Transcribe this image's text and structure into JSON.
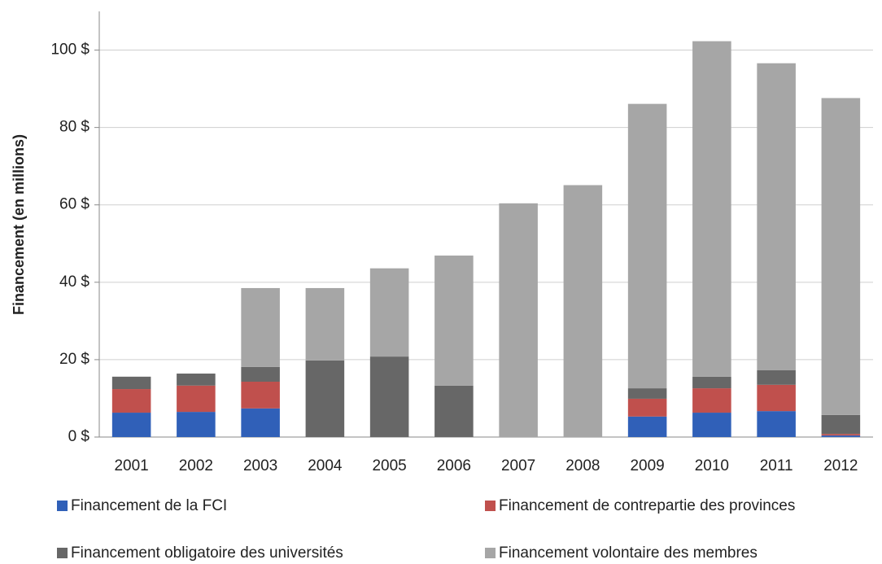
{
  "chart_data": {
    "type": "stacked_bar",
    "y_label": "Financement (en millions)",
    "categories": [
      "2001",
      "2002",
      "2003",
      "2004",
      "2005",
      "2006",
      "2007",
      "2008",
      "2009",
      "2010",
      "2011",
      "2012"
    ],
    "series": [
      {
        "name": "Financement de la FCI",
        "color": "#3060b8",
        "values": [
          6.3,
          6.5,
          7.4,
          0,
          0,
          0,
          0,
          0,
          5.3,
          6.3,
          6.7,
          0.4
        ]
      },
      {
        "name": "Financement de contrepartie des provinces",
        "color": "#c0504d",
        "values": [
          6.1,
          6.8,
          6.9,
          0,
          0,
          0,
          0,
          0,
          4.6,
          6.3,
          6.8,
          0.4
        ]
      },
      {
        "name": "Financement obligatoire des universités",
        "color": "#676767",
        "values": [
          3.2,
          3.1,
          3.8,
          19.8,
          20.8,
          13.3,
          0,
          0,
          2.7,
          3.0,
          3.8,
          4.9
        ]
      },
      {
        "name": "Financement volontaire des membres",
        "color": "#a6a6a6",
        "values": [
          0,
          0,
          20.4,
          18.7,
          22.8,
          33.6,
          60.4,
          65.1,
          73.5,
          86.7,
          79.3,
          81.9
        ]
      }
    ],
    "ylim": [
      0,
      110
    ],
    "yticks": [
      {
        "value": 0,
        "label": "0 $"
      },
      {
        "value": 20,
        "label": "20 $"
      },
      {
        "value": 40,
        "label": "40 $"
      },
      {
        "value": 60,
        "label": "60 $"
      },
      {
        "value": 80,
        "label": "80 $"
      },
      {
        "value": 100,
        "label": "100 $"
      }
    ],
    "grid": true
  }
}
